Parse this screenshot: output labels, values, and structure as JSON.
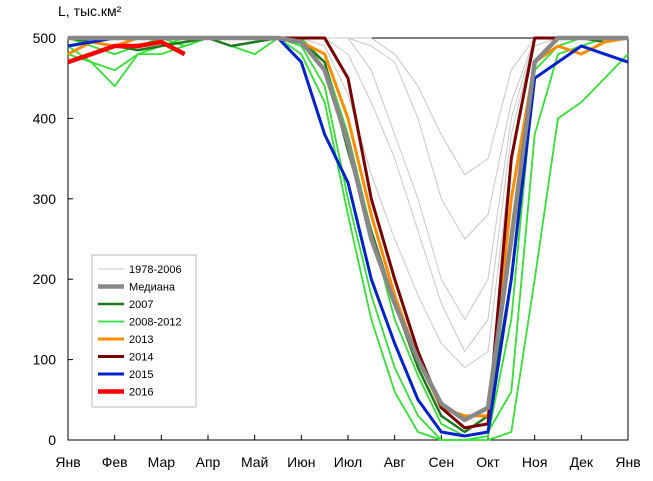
{
  "chart_data": {
    "type": "line",
    "y_label": "L, тыс.км²",
    "x": [
      0,
      0.5,
      1,
      1.5,
      2,
      2.5,
      3,
      3.5,
      4,
      4.5,
      5,
      5.5,
      6,
      6.5,
      7,
      7.5,
      8,
      8.5,
      9,
      9.5,
      10,
      10.5,
      11,
      11.5,
      12
    ],
    "xlim": [
      0,
      12
    ],
    "xticks": [
      {
        "value": 0,
        "label": "Янв"
      },
      {
        "value": 1,
        "label": "Фев"
      },
      {
        "value": 2,
        "label": "Мар"
      },
      {
        "value": 3,
        "label": "Апр"
      },
      {
        "value": 4,
        "label": "Май"
      },
      {
        "value": 5,
        "label": "Июн"
      },
      {
        "value": 6,
        "label": "Июл"
      },
      {
        "value": 7,
        "label": "Авг"
      },
      {
        "value": 8,
        "label": "Сен"
      },
      {
        "value": 9,
        "label": "Окт"
      },
      {
        "value": 10,
        "label": "Ноя"
      },
      {
        "value": 11,
        "label": "Дек"
      },
      {
        "value": 12,
        "label": "Янв"
      }
    ],
    "ylim": [
      0,
      500
    ],
    "yticks": [
      0,
      100,
      200,
      300,
      400,
      500
    ],
    "series": [
      {
        "name": "1978-2006",
        "color": "#c8c8c8",
        "lines": [
          [
            500,
            500,
            500,
            500,
            500,
            500,
            500,
            500,
            500,
            500,
            500,
            500,
            500,
            490,
            470,
            400,
            300,
            250,
            280,
            420,
            500,
            500,
            500,
            500,
            500
          ],
          [
            500,
            500,
            500,
            500,
            500,
            500,
            500,
            500,
            500,
            500,
            500,
            500,
            500,
            460,
            380,
            300,
            200,
            150,
            200,
            400,
            500,
            500,
            500,
            500,
            500
          ],
          [
            500,
            500,
            500,
            500,
            500,
            500,
            500,
            500,
            500,
            500,
            500,
            490,
            430,
            330,
            250,
            180,
            120,
            90,
            110,
            350,
            490,
            500,
            500,
            500,
            500
          ],
          [
            500,
            500,
            500,
            500,
            500,
            500,
            500,
            500,
            500,
            500,
            500,
            500,
            480,
            420,
            350,
            260,
            170,
            110,
            150,
            380,
            500,
            500,
            500,
            500,
            500
          ],
          [
            500,
            500,
            500,
            500,
            500,
            500,
            500,
            500,
            500,
            500,
            500,
            500,
            500,
            500,
            480,
            440,
            380,
            330,
            350,
            460,
            500,
            500,
            500,
            500,
            500
          ]
        ]
      },
      {
        "name": "Медиана",
        "color": "#888888",
        "values": [
          500,
          500,
          500,
          500,
          500,
          500,
          500,
          500,
          500,
          500,
          495,
          460,
          370,
          250,
          170,
          100,
          45,
          25,
          40,
          250,
          470,
          500,
          500,
          500,
          500
        ]
      },
      {
        "name": "2007",
        "color": "#1a7a1a",
        "values": [
          500,
          495,
          490,
          485,
          490,
          495,
          500,
          490,
          495,
          500,
          495,
          470,
          360,
          260,
          170,
          90,
          30,
          10,
          30,
          200,
          470,
          500,
          500,
          495,
          500
        ]
      },
      {
        "name": "2008-2012",
        "color": "#33e033",
        "lines": [
          [
            490,
            470,
            460,
            480,
            480,
            490,
            500,
            490,
            480,
            500,
            480,
            420,
            280,
            150,
            60,
            10,
            0,
            0,
            0,
            10,
            200,
            400,
            420,
            450,
            480
          ],
          [
            500,
            490,
            480,
            490,
            500,
            490,
            500,
            500,
            500,
            500,
            500,
            470,
            380,
            260,
            150,
            80,
            20,
            5,
            10,
            60,
            380,
            480,
            490,
            500,
            500
          ],
          [
            480,
            470,
            440,
            480,
            490,
            500,
            500,
            500,
            500,
            500,
            490,
            440,
            300,
            180,
            90,
            30,
            0,
            0,
            5,
            150,
            460,
            490,
            500,
            500,
            500
          ]
        ]
      },
      {
        "name": "2013",
        "color": "#ff8c00",
        "values": [
          480,
          495,
          490,
          500,
          500,
          500,
          500,
          500,
          500,
          500,
          495,
          480,
          400,
          280,
          180,
          100,
          40,
          30,
          30,
          300,
          470,
          490,
          480,
          495,
          500
        ]
      },
      {
        "name": "2014",
        "color": "#7a0000",
        "values": [
          500,
          500,
          500,
          500,
          500,
          500,
          500,
          500,
          500,
          500,
          500,
          500,
          450,
          300,
          200,
          110,
          40,
          15,
          20,
          350,
          500,
          500,
          500,
          500,
          500
        ]
      },
      {
        "name": "2015",
        "color": "#0022cc",
        "values": [
          490,
          495,
          500,
          500,
          500,
          500,
          500,
          500,
          500,
          500,
          470,
          380,
          320,
          200,
          120,
          50,
          10,
          5,
          10,
          200,
          450,
          470,
          490,
          480,
          470
        ]
      },
      {
        "name": "2016",
        "color": "#ff0000",
        "values": [
          470,
          480,
          490,
          490,
          495,
          480,
          null,
          null,
          null,
          null,
          null,
          null,
          null,
          null,
          null,
          null,
          null,
          null,
          null,
          null,
          null,
          null,
          null,
          null,
          null
        ]
      }
    ]
  }
}
